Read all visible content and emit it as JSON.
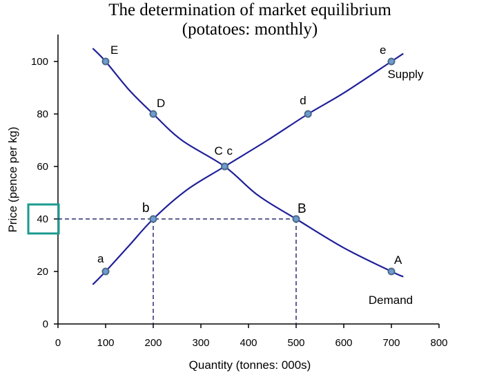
{
  "chart_data": {
    "type": "line",
    "title": [
      "The determination of market equilibrium",
      "(potatoes: monthly)"
    ],
    "xlabel": "Quantity (tonnes: 000s)",
    "ylabel": "Price (pence per kg)",
    "xlim": [
      0,
      800
    ],
    "ylim": [
      0,
      110
    ],
    "xticks": [
      0,
      100,
      200,
      300,
      400,
      500,
      600,
      700,
      800
    ],
    "yticks": [
      0,
      20,
      40,
      60,
      80,
      100
    ],
    "grid": false,
    "series": [
      {
        "name": "Demand",
        "color": "#1f1f99",
        "curve": [
          [
            73,
            105
          ],
          [
            100,
            100
          ],
          [
            150,
            89
          ],
          [
            200,
            80
          ],
          [
            260,
            70
          ],
          [
            350,
            60
          ],
          [
            420,
            49
          ],
          [
            500,
            40
          ],
          [
            600,
            29
          ],
          [
            700,
            20
          ],
          [
            725,
            18
          ]
        ],
        "points": [
          {
            "x": 100,
            "y": 100,
            "label": "E"
          },
          {
            "x": 200,
            "y": 80,
            "label": "D"
          },
          {
            "x": 350,
            "y": 60,
            "label": "C"
          },
          {
            "x": 500,
            "y": 40,
            "label": "B"
          },
          {
            "x": 700,
            "y": 20,
            "label": "A"
          }
        ]
      },
      {
        "name": "Supply",
        "color": "#1f1f99",
        "curve": [
          [
            73,
            15
          ],
          [
            100,
            20
          ],
          [
            150,
            30
          ],
          [
            200,
            40
          ],
          [
            270,
            51
          ],
          [
            350,
            60
          ],
          [
            440,
            70
          ],
          [
            525,
            80
          ],
          [
            600,
            88
          ],
          [
            700,
            100
          ],
          [
            725,
            103
          ]
        ],
        "points": [
          {
            "x": 100,
            "y": 20,
            "label": "a"
          },
          {
            "x": 200,
            "y": 40,
            "label": "b"
          },
          {
            "x": 350,
            "y": 60,
            "label": "c"
          },
          {
            "x": 525,
            "y": 80,
            "label": "d"
          },
          {
            "x": 700,
            "y": 100,
            "label": "e"
          }
        ]
      }
    ],
    "guides": {
      "price": 40,
      "quantities": [
        200,
        500
      ]
    },
    "highlighted_tick": 40,
    "highlight_color": "#1a9a8e",
    "point_color": "#6f9ccf"
  }
}
